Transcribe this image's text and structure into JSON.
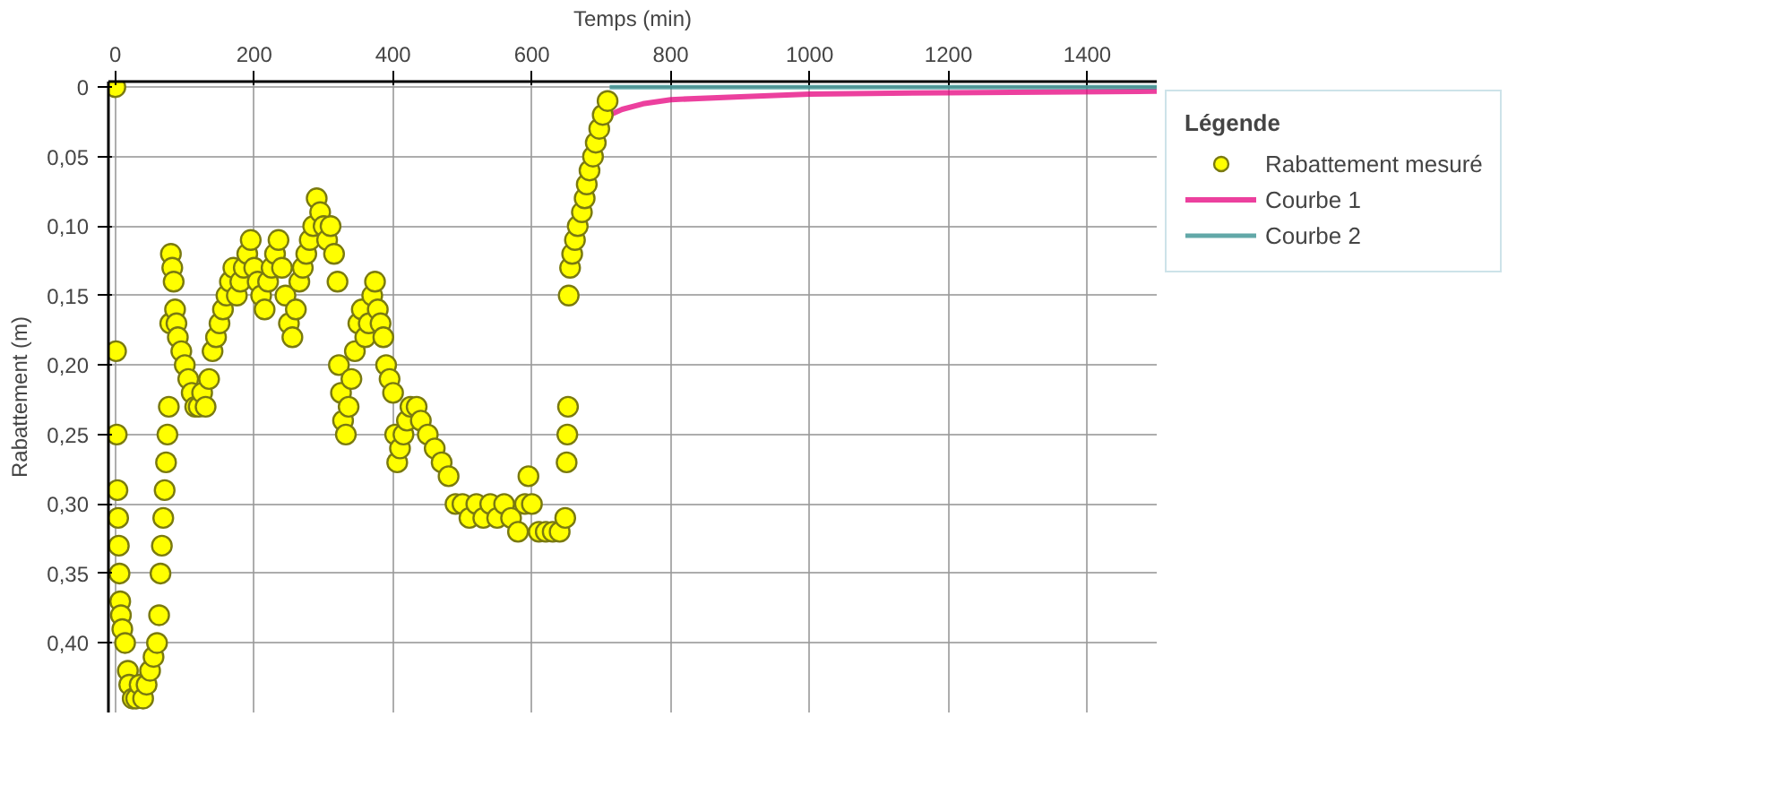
{
  "chart_data": {
    "type": "scatter",
    "xlabel": "Temps (min)",
    "ylabel": "Rabattement (m)",
    "legend_title": "Légende",
    "legend": "top right",
    "grid": true,
    "line_style": "solid",
    "xlim": [
      -10,
      1500
    ],
    "ylim": [
      0.45,
      -0.004
    ],
    "xticks": [
      0,
      200,
      400,
      600,
      800,
      1000,
      1200,
      1400
    ],
    "yticks": [
      {
        "value": 0,
        "label": "0"
      },
      {
        "value": 0.05,
        "label": "0,05"
      },
      {
        "value": 0.1,
        "label": "0,10"
      },
      {
        "value": 0.15,
        "label": "0,15"
      },
      {
        "value": 0.2,
        "label": "0,20"
      },
      {
        "value": 0.25,
        "label": "0,25"
      },
      {
        "value": 0.3,
        "label": "0,30"
      },
      {
        "value": 0.35,
        "label": "0,35"
      },
      {
        "value": 0.4,
        "label": "0,40"
      }
    ],
    "series": [
      {
        "name": "Rabattement mesuré",
        "marker": "circle",
        "color": "#ffff00",
        "x": [
          0,
          1,
          2,
          3,
          4,
          5,
          6,
          7,
          8,
          10,
          14,
          18,
          20,
          25,
          30,
          35,
          40,
          45,
          50,
          55,
          60,
          63,
          65,
          67,
          69,
          71,
          73,
          75,
          77,
          79,
          80,
          82,
          84,
          86,
          88,
          90,
          95,
          100,
          105,
          110,
          115,
          120,
          125,
          130,
          135,
          140,
          145,
          150,
          155,
          160,
          165,
          170,
          175,
          180,
          185,
          190,
          195,
          200,
          205,
          210,
          215,
          220,
          225,
          230,
          235,
          240,
          245,
          250,
          255,
          260,
          265,
          270,
          275,
          280,
          285,
          290,
          295,
          300,
          305,
          310,
          315,
          320,
          322,
          325,
          328,
          332,
          336,
          340,
          345,
          350,
          355,
          360,
          365,
          370,
          374,
          378,
          382,
          386,
          390,
          395,
          400,
          403,
          406,
          410,
          415,
          420,
          425,
          434,
          440,
          450,
          460,
          470,
          480,
          490,
          500,
          510,
          520,
          530,
          540,
          550,
          560,
          570,
          580,
          590,
          595,
          600,
          610,
          620,
          630,
          640,
          648,
          650,
          651,
          652,
          653,
          655,
          658,
          662,
          666,
          672,
          676,
          679,
          683,
          688,
          692,
          697,
          702,
          709
        ],
        "values": [
          0,
          0.19,
          0.25,
          0.29,
          0.31,
          0.33,
          0.35,
          0.37,
          0.38,
          0.39,
          0.4,
          0.42,
          0.43,
          0.44,
          0.44,
          0.43,
          0.44,
          0.43,
          0.42,
          0.41,
          0.4,
          0.38,
          0.35,
          0.33,
          0.31,
          0.29,
          0.27,
          0.25,
          0.23,
          0.17,
          0.12,
          0.13,
          0.14,
          0.16,
          0.17,
          0.18,
          0.19,
          0.2,
          0.21,
          0.22,
          0.23,
          0.23,
          0.22,
          0.23,
          0.21,
          0.19,
          0.18,
          0.17,
          0.16,
          0.15,
          0.14,
          0.13,
          0.15,
          0.14,
          0.13,
          0.12,
          0.11,
          0.13,
          0.14,
          0.15,
          0.16,
          0.14,
          0.13,
          0.12,
          0.11,
          0.13,
          0.15,
          0.17,
          0.18,
          0.16,
          0.14,
          0.13,
          0.12,
          0.11,
          0.1,
          0.08,
          0.09,
          0.1,
          0.11,
          0.1,
          0.12,
          0.14,
          0.2,
          0.22,
          0.24,
          0.25,
          0.23,
          0.21,
          0.19,
          0.17,
          0.16,
          0.18,
          0.17,
          0.15,
          0.14,
          0.16,
          0.17,
          0.18,
          0.2,
          0.21,
          0.22,
          0.25,
          0.27,
          0.26,
          0.25,
          0.24,
          0.23,
          0.23,
          0.24,
          0.25,
          0.26,
          0.27,
          0.28,
          0.3,
          0.3,
          0.31,
          0.3,
          0.31,
          0.3,
          0.31,
          0.3,
          0.31,
          0.32,
          0.3,
          0.28,
          0.3,
          0.32,
          0.32,
          0.32,
          0.32,
          0.31,
          0.27,
          0.25,
          0.23,
          0.15,
          0.13,
          0.12,
          0.11,
          0.1,
          0.09,
          0.08,
          0.07,
          0.06,
          0.05,
          0.04,
          0.03,
          0.02,
          0.01
        ]
      },
      {
        "name": "Courbe 1",
        "type": "line",
        "color": "#e6007e",
        "x": [
          712,
          730,
          760,
          800,
          900,
          1000,
          1200,
          1500
        ],
        "values": [
          0.02,
          0.016,
          0.012,
          0.009,
          0.007,
          0.005,
          0.004,
          0.003
        ]
      },
      {
        "name": "Courbe 2",
        "type": "line",
        "color": "#2e8b8b",
        "x": [
          712,
          1500
        ],
        "values": [
          0,
          0
        ]
      }
    ]
  }
}
